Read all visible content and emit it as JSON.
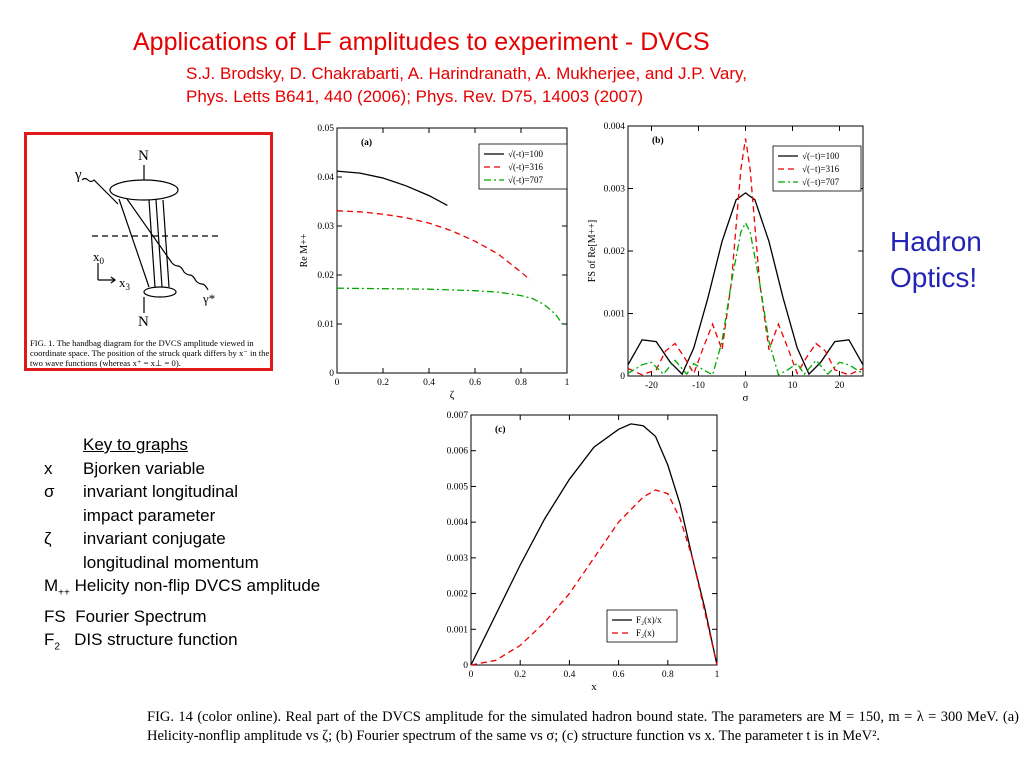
{
  "title": "Applications of LF amplitudes to experiment - DVCS",
  "authors_line1": "S.J. Brodsky, D. Chakrabarti, A. Harindranath, A. Mukherjee, and J.P. Vary,",
  "authors_line2": "Phys. Letts B641, 440 (2006); Phys. Rev. D75, 14003 (2007)",
  "hadron_optics": [
    "Hadron",
    "Optics!"
  ],
  "colors": {
    "title": "#e60000",
    "hadron_optics": "#2323b5",
    "fig1_border": "#e01919",
    "series_black": "#000000",
    "series_red": "#ee0000",
    "series_green": "#00aa00"
  },
  "fig1": {
    "labels": {
      "N_top": "N",
      "N_bottom": "N",
      "gamma": "γ",
      "gamma_star": "γ*",
      "x0": "x",
      "x0_sub": "0",
      "x3": "x",
      "x3_sub": "3"
    },
    "caption": "FIG. 1.   The handbag diagram for the DVCS amplitude viewed in coordinate space. The position of the struck quark differs by x⁻ in the two wave functions (whereas x⁺ = x⊥ = 0)."
  },
  "key": {
    "title": "Key to graphs",
    "rows": [
      {
        "symbol": "x",
        "text": "Bjorken variable"
      },
      {
        "symbol": "σ",
        "text": "invariant longitudinal"
      },
      {
        "symbol": "",
        "text": "impact parameter"
      },
      {
        "symbol": "ζ",
        "text": "invariant conjugate"
      },
      {
        "symbol": "",
        "text": "longitudinal momentum"
      },
      {
        "symbol": "M",
        "sub": "++",
        "text": "Helicity non-flip DVCS amplitude"
      },
      {
        "symbol": "FS",
        "text": "Fourier Spectrum"
      },
      {
        "symbol": "F",
        "sub": "2",
        "text": "DIS structure function"
      }
    ]
  },
  "chart_data": [
    {
      "panel": "(a)",
      "type": "line",
      "xlabel": "ζ",
      "ylabel": "Re M++",
      "xlim": [
        0,
        1
      ],
      "ylim": [
        0,
        0.05
      ],
      "xticks": [
        "0",
        "0.2",
        "0.4",
        "0.6",
        "0.8",
        "1"
      ],
      "yticks": [
        "0",
        "0.01",
        "0.02",
        "0.03",
        "0.04",
        "0.05"
      ],
      "legend_position": "top-right",
      "series": [
        {
          "name": "√(-t)=100",
          "color": "#000000",
          "dash": "solid",
          "x": [
            0,
            0.1,
            0.2,
            0.3,
            0.4,
            0.48
          ],
          "y": [
            0.0412,
            0.0408,
            0.0398,
            0.0382,
            0.0362,
            0.0342
          ]
        },
        {
          "name": "√(-t)=316",
          "color": "#ee0000",
          "dash": "dashed",
          "x": [
            0,
            0.1,
            0.2,
            0.3,
            0.4,
            0.5,
            0.6,
            0.7,
            0.8,
            0.84
          ],
          "y": [
            0.0331,
            0.0329,
            0.0324,
            0.0317,
            0.0306,
            0.029,
            0.0269,
            0.0243,
            0.0206,
            0.019
          ]
        },
        {
          "name": "√(-t)=707",
          "color": "#00aa00",
          "dash": "dashdot",
          "x": [
            0,
            0.2,
            0.4,
            0.6,
            0.7,
            0.8,
            0.85,
            0.9,
            0.95,
            0.98
          ],
          "y": [
            0.0173,
            0.0172,
            0.0171,
            0.0168,
            0.0165,
            0.0158,
            0.0152,
            0.014,
            0.012,
            0.01
          ]
        }
      ]
    },
    {
      "panel": "(b)",
      "type": "line",
      "xlabel": "σ",
      "ylabel": "FS of Re[M++]",
      "xlim": [
        -25,
        25
      ],
      "ylim": [
        0,
        0.004
      ],
      "xticks": [
        "-20",
        "-10",
        "0",
        "10",
        "20"
      ],
      "yticks": [
        "0",
        "0.001",
        "0.002",
        "0.003",
        "0.004"
      ],
      "legend_position": "top-right",
      "series": [
        {
          "name": "√(−t)=100",
          "color": "#000000",
          "dash": "solid",
          "x": [
            -25,
            -22,
            -19,
            -16,
            -13.5,
            -11,
            -8,
            -5,
            -2,
            0,
            2,
            5,
            8,
            11,
            13.5,
            16,
            19,
            22,
            25
          ],
          "y": [
            0.00018,
            0.00058,
            0.00055,
            0.00022,
            3e-05,
            0.00045,
            0.00125,
            0.00215,
            0.00282,
            0.00293,
            0.00282,
            0.00215,
            0.00125,
            0.00045,
            3e-05,
            0.00022,
            0.00055,
            0.00058,
            0.00018
          ]
        },
        {
          "name": "√(−t)=316",
          "color": "#ee0000",
          "dash": "dashed",
          "x": [
            -25,
            -22,
            -19,
            -17,
            -15,
            -13,
            -11,
            -9,
            -7,
            -5,
            -3,
            -1,
            0,
            1,
            3,
            5,
            7,
            9,
            11,
            13,
            15,
            17,
            19,
            22,
            25
          ],
          "y": [
            0.00012,
            2e-05,
            0.0001,
            0.0004,
            0.00052,
            0.0003,
            4e-05,
            0.00045,
            0.00083,
            0.00042,
            0.0015,
            0.0033,
            0.0038,
            0.0033,
            0.0015,
            0.00042,
            0.00083,
            0.00045,
            4e-05,
            0.0003,
            0.00052,
            0.0004,
            0.0001,
            2e-05,
            0.00012
          ]
        },
        {
          "name": "√(−t)=707",
          "color": "#00aa00",
          "dash": "dashdot",
          "x": [
            -25,
            -22,
            -20,
            -17.5,
            -15,
            -12.5,
            -11,
            -9,
            -7,
            -5,
            -3,
            -1,
            0,
            1,
            3,
            5,
            7,
            9,
            11,
            12.5,
            15,
            17.5,
            20,
            22,
            25
          ],
          "y": [
            4e-05,
            0.00018,
            0.00022,
            3e-05,
            0.00025,
            3e-05,
            0.0002,
            0.0001,
            2e-05,
            0.00055,
            0.0015,
            0.0023,
            0.00245,
            0.0023,
            0.0015,
            0.00055,
            2e-05,
            0.0001,
            0.0002,
            3e-05,
            0.00025,
            3e-05,
            0.00022,
            0.00018,
            4e-05
          ]
        }
      ]
    },
    {
      "panel": "(c)",
      "type": "line",
      "xlabel": "x",
      "ylabel": "",
      "xlim": [
        0,
        1
      ],
      "ylim": [
        0,
        0.007
      ],
      "xticks": [
        "0",
        "0.2",
        "0.4",
        "0.6",
        "0.8",
        "1"
      ],
      "yticks": [
        "0",
        "0.001",
        "0.002",
        "0.003",
        "0.004",
        "0.005",
        "0.006",
        "0.007"
      ],
      "legend_position": "bottom-right",
      "series": [
        {
          "name": "F₂(x)/x",
          "color": "#000000",
          "dash": "solid",
          "x": [
            0,
            0.05,
            0.1,
            0.2,
            0.3,
            0.4,
            0.5,
            0.6,
            0.65,
            0.7,
            0.75,
            0.8,
            0.85,
            0.9,
            0.95,
            1.0
          ],
          "y": [
            0,
            0.0007,
            0.0014,
            0.0028,
            0.0041,
            0.0052,
            0.0061,
            0.0066,
            0.00675,
            0.0067,
            0.0064,
            0.0056,
            0.0045,
            0.003,
            0.0016,
            0
          ]
        },
        {
          "name": "F₂(x)",
          "color": "#ee0000",
          "dash": "dashed",
          "x": [
            0,
            0.1,
            0.2,
            0.3,
            0.4,
            0.5,
            0.6,
            0.7,
            0.75,
            0.8,
            0.85,
            0.9,
            0.95,
            1.0
          ],
          "y": [
            0,
            0.00013,
            0.00055,
            0.0012,
            0.002,
            0.003,
            0.004,
            0.0047,
            0.0049,
            0.0048,
            0.0041,
            0.003,
            0.0015,
            0
          ]
        }
      ]
    }
  ],
  "bottom_caption": "FIG. 14 (color online).   Real part of the DVCS amplitude for the simulated hadron bound state. The parameters are M = 150, m = λ = 300 MeV. (a) Helicity-nonflip amplitude vs ζ; (b) Fourier spectrum of the same vs σ; (c) structure function vs x. The parameter t is in MeV²."
}
